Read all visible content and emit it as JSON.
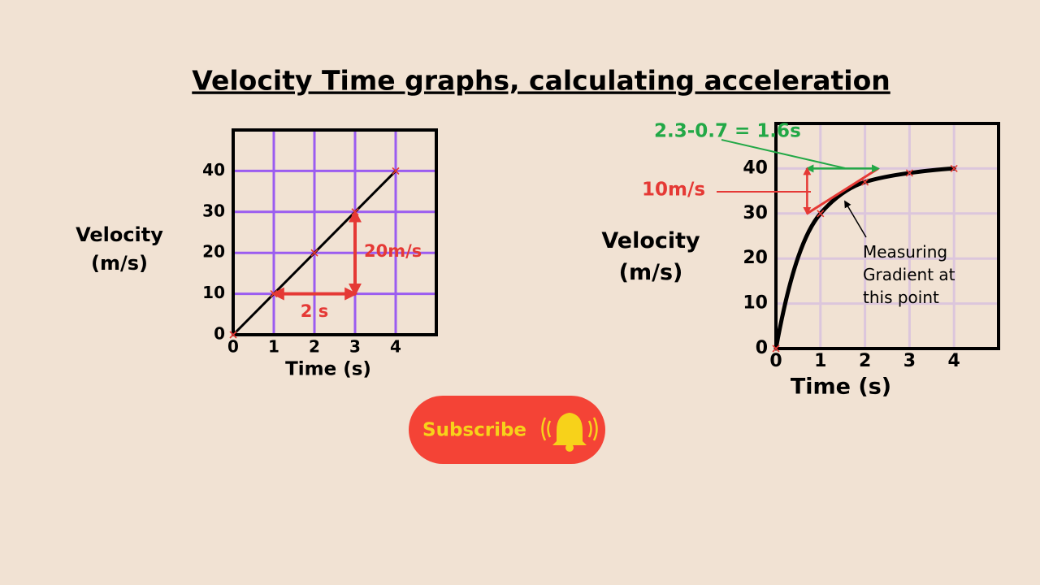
{
  "title": "Velocity Time graphs, calculating acceleration",
  "chart_data": [
    {
      "type": "line",
      "xlabel": "Time (s)",
      "ylabel": "Velocity (m/s)",
      "x": [
        0,
        1,
        2,
        3,
        4
      ],
      "values": [
        0,
        10,
        20,
        30,
        40
      ],
      "color": "#000000",
      "marker_color": "#e53935",
      "xlim": [
        0,
        5
      ],
      "ylim": [
        0,
        50
      ],
      "xticks": [
        0,
        1,
        2,
        3,
        4
      ],
      "yticks": [
        0,
        10,
        20,
        30,
        40
      ],
      "grid": true,
      "grid_color": "#9b5cf0",
      "smooth": false,
      "annotations": [
        {
          "text": "2 s",
          "x": [
            1,
            3
          ],
          "values": [
            10,
            10
          ],
          "color": "#e53935"
        },
        {
          "text": "20m/s",
          "x": [
            3,
            3
          ],
          "values": [
            10,
            30
          ],
          "color": "#e53935"
        }
      ]
    },
    {
      "type": "line",
      "xlabel": "Time (s)",
      "ylabel": "Velocity (m/s)",
      "x": [
        0,
        1,
        2,
        3,
        4
      ],
      "values": [
        0,
        30,
        37,
        39,
        40
      ],
      "color": "#000000",
      "marker_color": "#e53935",
      "xlim": [
        0,
        5
      ],
      "ylim": [
        0,
        50
      ],
      "xticks": [
        0,
        1,
        2,
        3,
        4
      ],
      "yticks": [
        0,
        10,
        20,
        30,
        40
      ],
      "grid": true,
      "grid_color": "#dcc6dc",
      "smooth": true,
      "tangent": {
        "x": [
          0.7,
          2.3
        ],
        "values": [
          30,
          40
        ],
        "color": "#e53935"
      },
      "note": "Measuring Gradient at this point",
      "annotations": [
        {
          "text": "2.3-0.7 = 1.6s",
          "x": [
            0.7,
            2.3
          ],
          "values": [
            40,
            40
          ],
          "color": "#22a846"
        },
        {
          "text": "10m/s",
          "x": [
            0.7,
            0.7
          ],
          "values": [
            30,
            40
          ],
          "color": "#e53935"
        }
      ]
    }
  ],
  "button": {
    "label": "Subscribe"
  }
}
